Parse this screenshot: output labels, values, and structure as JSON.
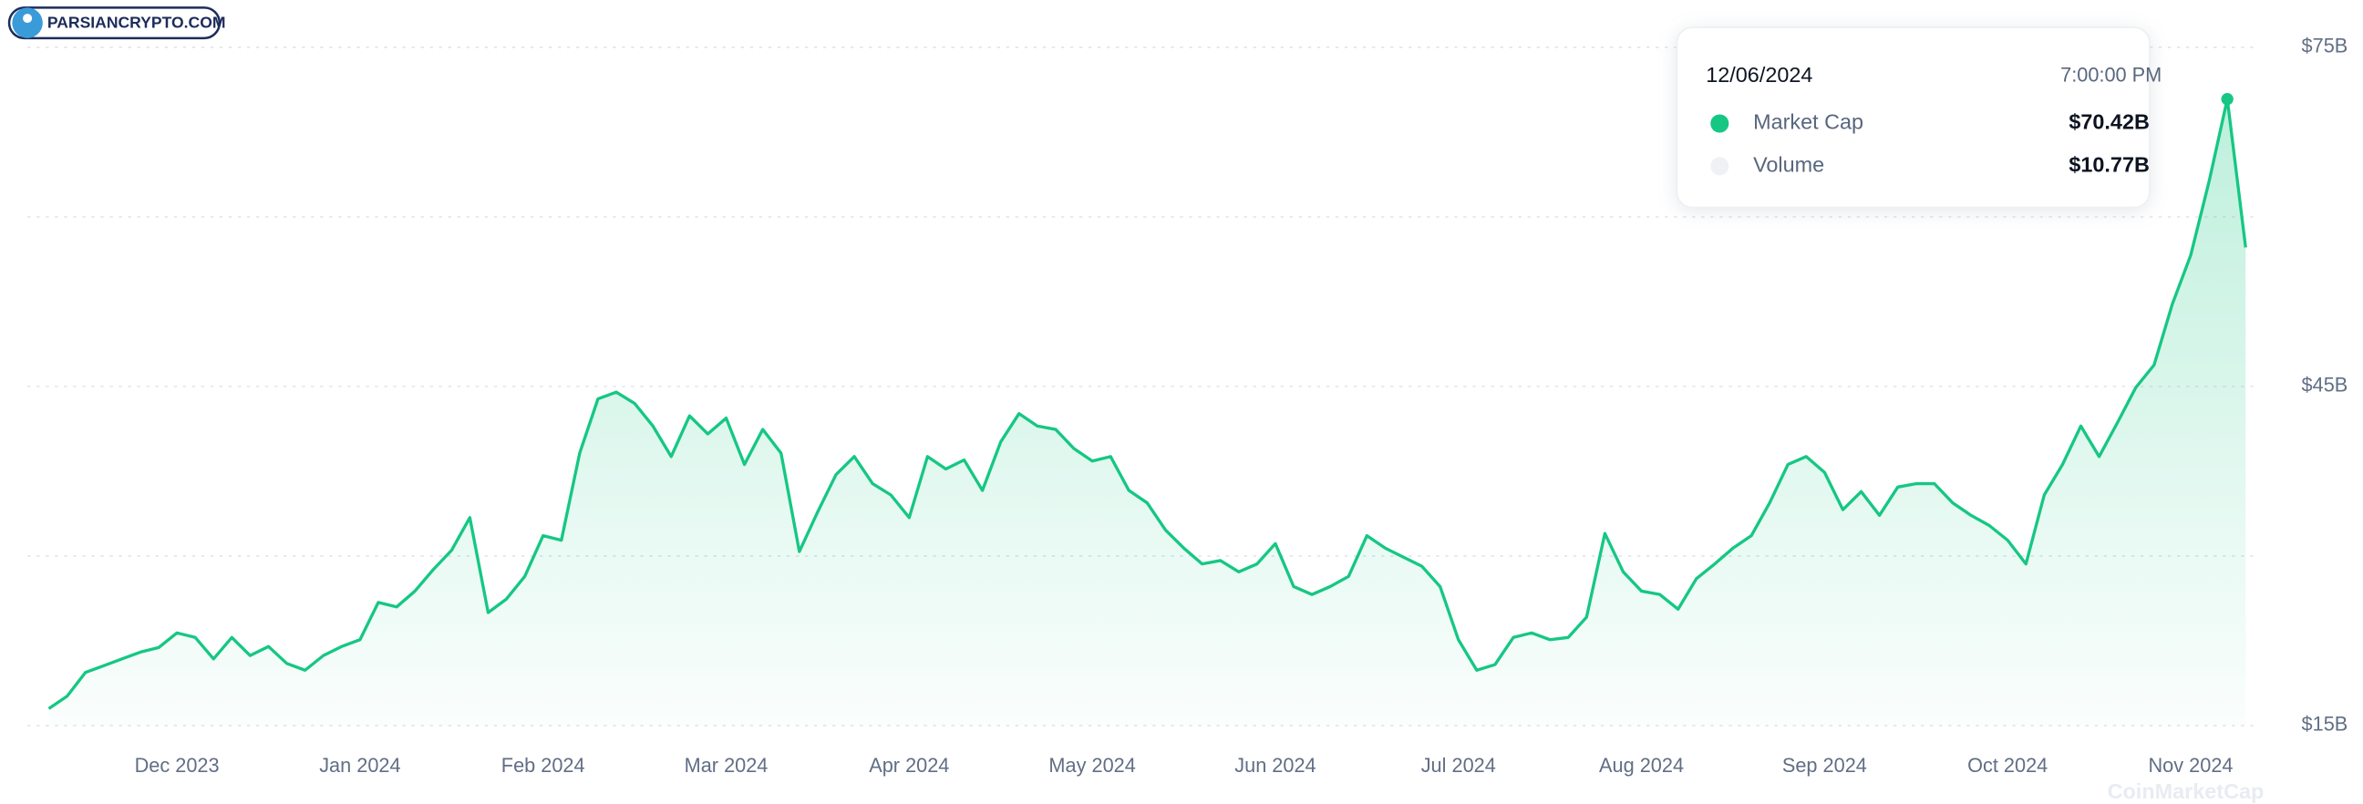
{
  "logo": "PARSIANCRYPTO.COM",
  "watermark": "CoinMarketCap",
  "tooltip": {
    "date": "12/06/2024",
    "time": "7:00:00 PM",
    "rows": [
      {
        "name": "Market Cap",
        "value": "$70.42B"
      },
      {
        "name": "Volume",
        "value": "$10.77B"
      }
    ]
  },
  "chart_data": {
    "type": "area",
    "categories": [
      null,
      null,
      null,
      null,
      null,
      null,
      null,
      "Dec 2023",
      null,
      null,
      null,
      null,
      null,
      null,
      null,
      null,
      null,
      "Jan 2024",
      null,
      null,
      null,
      null,
      null,
      null,
      null,
      null,
      null,
      "Feb 2024",
      null,
      null,
      null,
      null,
      null,
      null,
      null,
      null,
      null,
      "Mar 2024",
      null,
      null,
      null,
      null,
      null,
      null,
      null,
      null,
      null,
      "Apr 2024",
      null,
      null,
      null,
      null,
      null,
      null,
      null,
      null,
      null,
      "May 2024",
      null,
      null,
      null,
      null,
      null,
      null,
      null,
      null,
      null,
      "Jun 2024",
      null,
      null,
      null,
      null,
      null,
      null,
      null,
      null,
      null,
      "Jul 2024",
      null,
      null,
      null,
      null,
      null,
      null,
      null,
      null,
      null,
      "Aug 2024",
      null,
      null,
      null,
      null,
      null,
      null,
      null,
      null,
      null,
      "Sep 2024",
      null,
      null,
      null,
      null,
      null,
      null,
      null,
      null,
      null,
      "Oct 2024",
      null,
      null,
      null,
      null,
      null,
      null,
      null,
      null,
      null,
      "Nov 2024",
      null,
      null,
      null
    ],
    "series": [
      {
        "name": "Market Cap",
        "color": "#16c784",
        "values": [
          16.5,
          17.6,
          19.7,
          20.3,
          20.9,
          21.5,
          21.9,
          23.2,
          22.8,
          20.9,
          22.8,
          21.2,
          22.0,
          20.5,
          19.9,
          21.2,
          22.0,
          22.6,
          25.9,
          25.5,
          26.9,
          28.8,
          30.5,
          33.4,
          25.0,
          26.2,
          28.2,
          31.8,
          31.4,
          39.1,
          43.9,
          44.5,
          43.5,
          41.5,
          38.8,
          42.4,
          40.8,
          42.2,
          38.1,
          41.2,
          39.1,
          30.4,
          33.9,
          37.2,
          38.8,
          36.4,
          35.4,
          33.4,
          38.8,
          37.7,
          38.5,
          35.8,
          40.1,
          42.6,
          41.5,
          41.2,
          39.5,
          38.4,
          38.8,
          35.8,
          34.7,
          32.3,
          30.7,
          29.3,
          29.6,
          28.6,
          29.3,
          31.1,
          27.3,
          26.6,
          27.3,
          28.2,
          31.8,
          30.7,
          29.9,
          29.1,
          27.3,
          22.6,
          19.9,
          20.4,
          22.8,
          23.2,
          22.6,
          22.8,
          24.6,
          32.0,
          28.6,
          26.9,
          26.6,
          25.3,
          28.0,
          29.3,
          30.7,
          31.8,
          34.7,
          38.1,
          38.8,
          37.4,
          34.1,
          35.7,
          33.6,
          36.1,
          36.4,
          36.4,
          34.7,
          33.6,
          32.7,
          31.4,
          29.3,
          35.4,
          38.1,
          41.5,
          38.8,
          41.8,
          44.9,
          46.9,
          52.3,
          56.6,
          63.1,
          70.42,
          57.3
        ]
      }
    ],
    "ylim": [
      15,
      75
    ],
    "yticks": [
      {
        "value": 15,
        "label": "$15B"
      },
      {
        "value": 30,
        "label": null
      },
      {
        "value": 45,
        "label": "$45B"
      },
      {
        "value": 60,
        "label": null
      },
      {
        "value": 75,
        "label": "$75B"
      }
    ],
    "grid": true
  }
}
